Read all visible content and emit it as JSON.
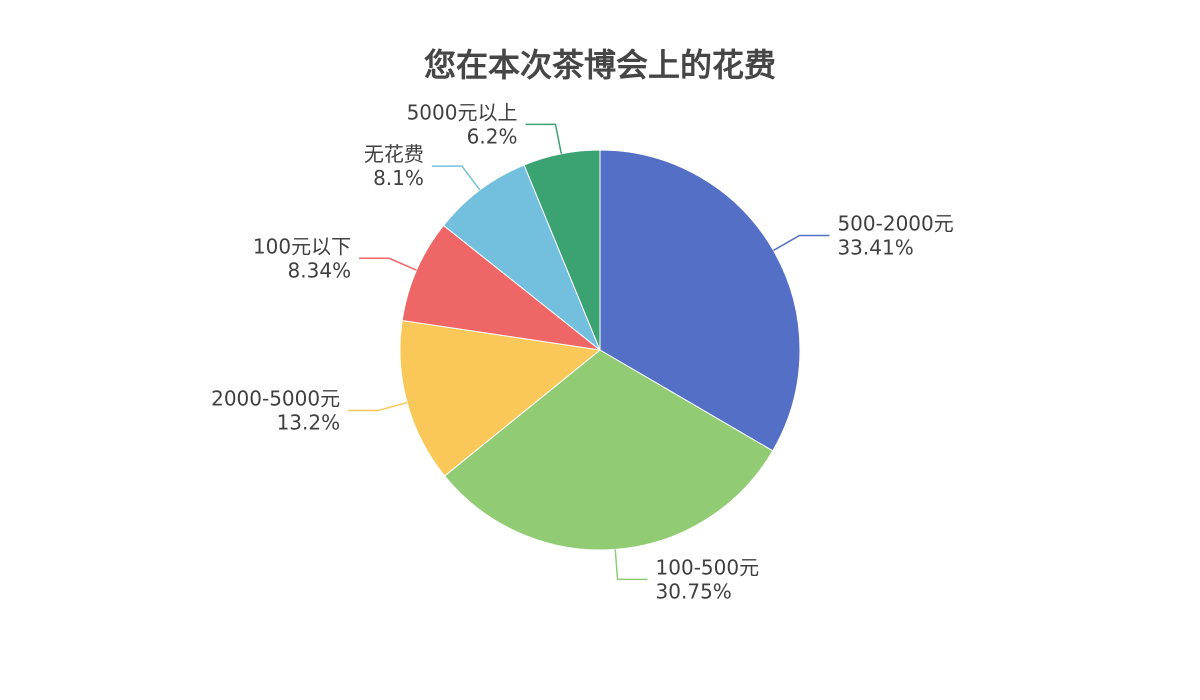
{
  "chart_data": {
    "type": "pie",
    "title": "您在本次茶博会上的花费",
    "start": "top, clockwise",
    "slices": [
      {
        "name": "500-2000元",
        "value": 33.41,
        "label": "33.41%",
        "color": "#5470c6"
      },
      {
        "name": "100-500元",
        "value": 30.75,
        "label": "30.75%",
        "color": "#91cc75"
      },
      {
        "name": "2000-5000元",
        "value": 13.2,
        "label": "13.2%",
        "color": "#fac858"
      },
      {
        "name": "100元以下",
        "value": 8.34,
        "label": "8.34%",
        "color": "#ee6666"
      },
      {
        "name": "无花费",
        "value": 8.1,
        "label": "8.1%",
        "color": "#73c0de"
      },
      {
        "name": "5000元以上",
        "value": 6.2,
        "label": "6.2%",
        "color": "#3ba272"
      }
    ]
  }
}
